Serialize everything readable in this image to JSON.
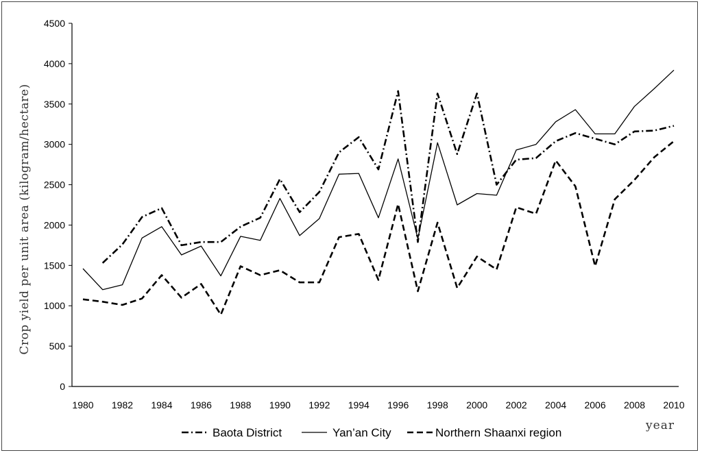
{
  "chart_data": {
    "type": "line",
    "title": "",
    "xlabel": "year",
    "ylabel": "Crop yield per unit area (kilogram/hectare)",
    "xlim": [
      1980,
      2010
    ],
    "ylim": [
      0,
      4500
    ],
    "x_ticks": [
      1980,
      1982,
      1984,
      1986,
      1988,
      1990,
      1992,
      1994,
      1996,
      1998,
      2000,
      2002,
      2004,
      2006,
      2008,
      2010
    ],
    "y_ticks": [
      0,
      500,
      1000,
      1500,
      2000,
      2500,
      3000,
      3500,
      4000,
      4500
    ],
    "grid": false,
    "legend_position": "bottom",
    "x": [
      1980,
      1981,
      1982,
      1983,
      1984,
      1985,
      1986,
      1987,
      1988,
      1989,
      1990,
      1991,
      1992,
      1993,
      1994,
      1995,
      1996,
      1997,
      1998,
      1999,
      2000,
      2001,
      2002,
      2003,
      2004,
      2005,
      2006,
      2007,
      2008,
      2009,
      2010
    ],
    "series": [
      {
        "name": "Baota District",
        "style": "dashdot",
        "color": "#000000",
        "values": [
          null,
          1530,
          1760,
          2100,
          2210,
          1750,
          1790,
          1790,
          1980,
          2090,
          2570,
          2160,
          2410,
          2900,
          3090,
          2690,
          3660,
          1790,
          3630,
          2880,
          3630,
          2500,
          2810,
          2830,
          3040,
          3140,
          3070,
          3000,
          3160,
          3170,
          3230
        ]
      },
      {
        "name": "Yan’an City",
        "style": "solid",
        "color": "#000000",
        "values": [
          1460,
          1200,
          1260,
          1840,
          1980,
          1630,
          1740,
          1370,
          1860,
          1810,
          2330,
          1870,
          2080,
          2630,
          2640,
          2090,
          2820,
          1830,
          3020,
          2250,
          2390,
          2370,
          2930,
          3000,
          3280,
          3430,
          3130,
          3130,
          3470,
          3690,
          3920
        ]
      },
      {
        "name": "Northern Shaanxi region",
        "style": "dashed",
        "color": "#000000",
        "values": [
          1080,
          1050,
          1010,
          1090,
          1380,
          1100,
          1270,
          890,
          1490,
          1380,
          1440,
          1290,
          1290,
          1850,
          1890,
          1320,
          2260,
          1180,
          2030,
          1220,
          1610,
          1450,
          2220,
          2140,
          2800,
          2480,
          1490,
          2320,
          2560,
          2840,
          3040
        ]
      }
    ]
  }
}
